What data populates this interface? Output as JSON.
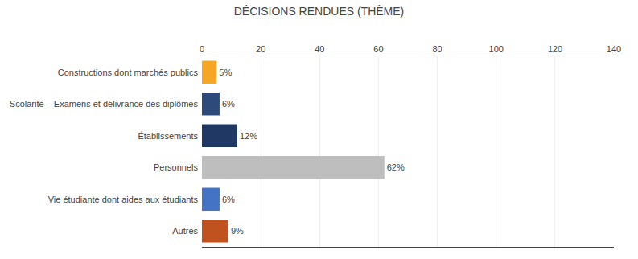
{
  "chart_data": {
    "type": "bar",
    "orientation": "horizontal",
    "title": "DÉCISIONS RENDUES (THÈME)",
    "categories": [
      "Constructions dont marchés publics",
      "Scolarité – Examens et délivrance des diplômes",
      "Établissements",
      "Personnels",
      "Vie étudiante dont aides aux étudiants",
      "Autres"
    ],
    "values": [
      5,
      6,
      12,
      62,
      6,
      9
    ],
    "value_labels": [
      "5%",
      "6%",
      "12%",
      "62%",
      "6%",
      "9%"
    ],
    "data_labels": true,
    "colors": [
      "#F5A623",
      "#2E4A7A",
      "#1F3864",
      "#BEBEBE",
      "#4472C4",
      "#C0521F"
    ],
    "xlim": [
      0,
      140
    ],
    "xticks": [
      0,
      20,
      40,
      60,
      80,
      100,
      120,
      140
    ],
    "grid": true
  }
}
